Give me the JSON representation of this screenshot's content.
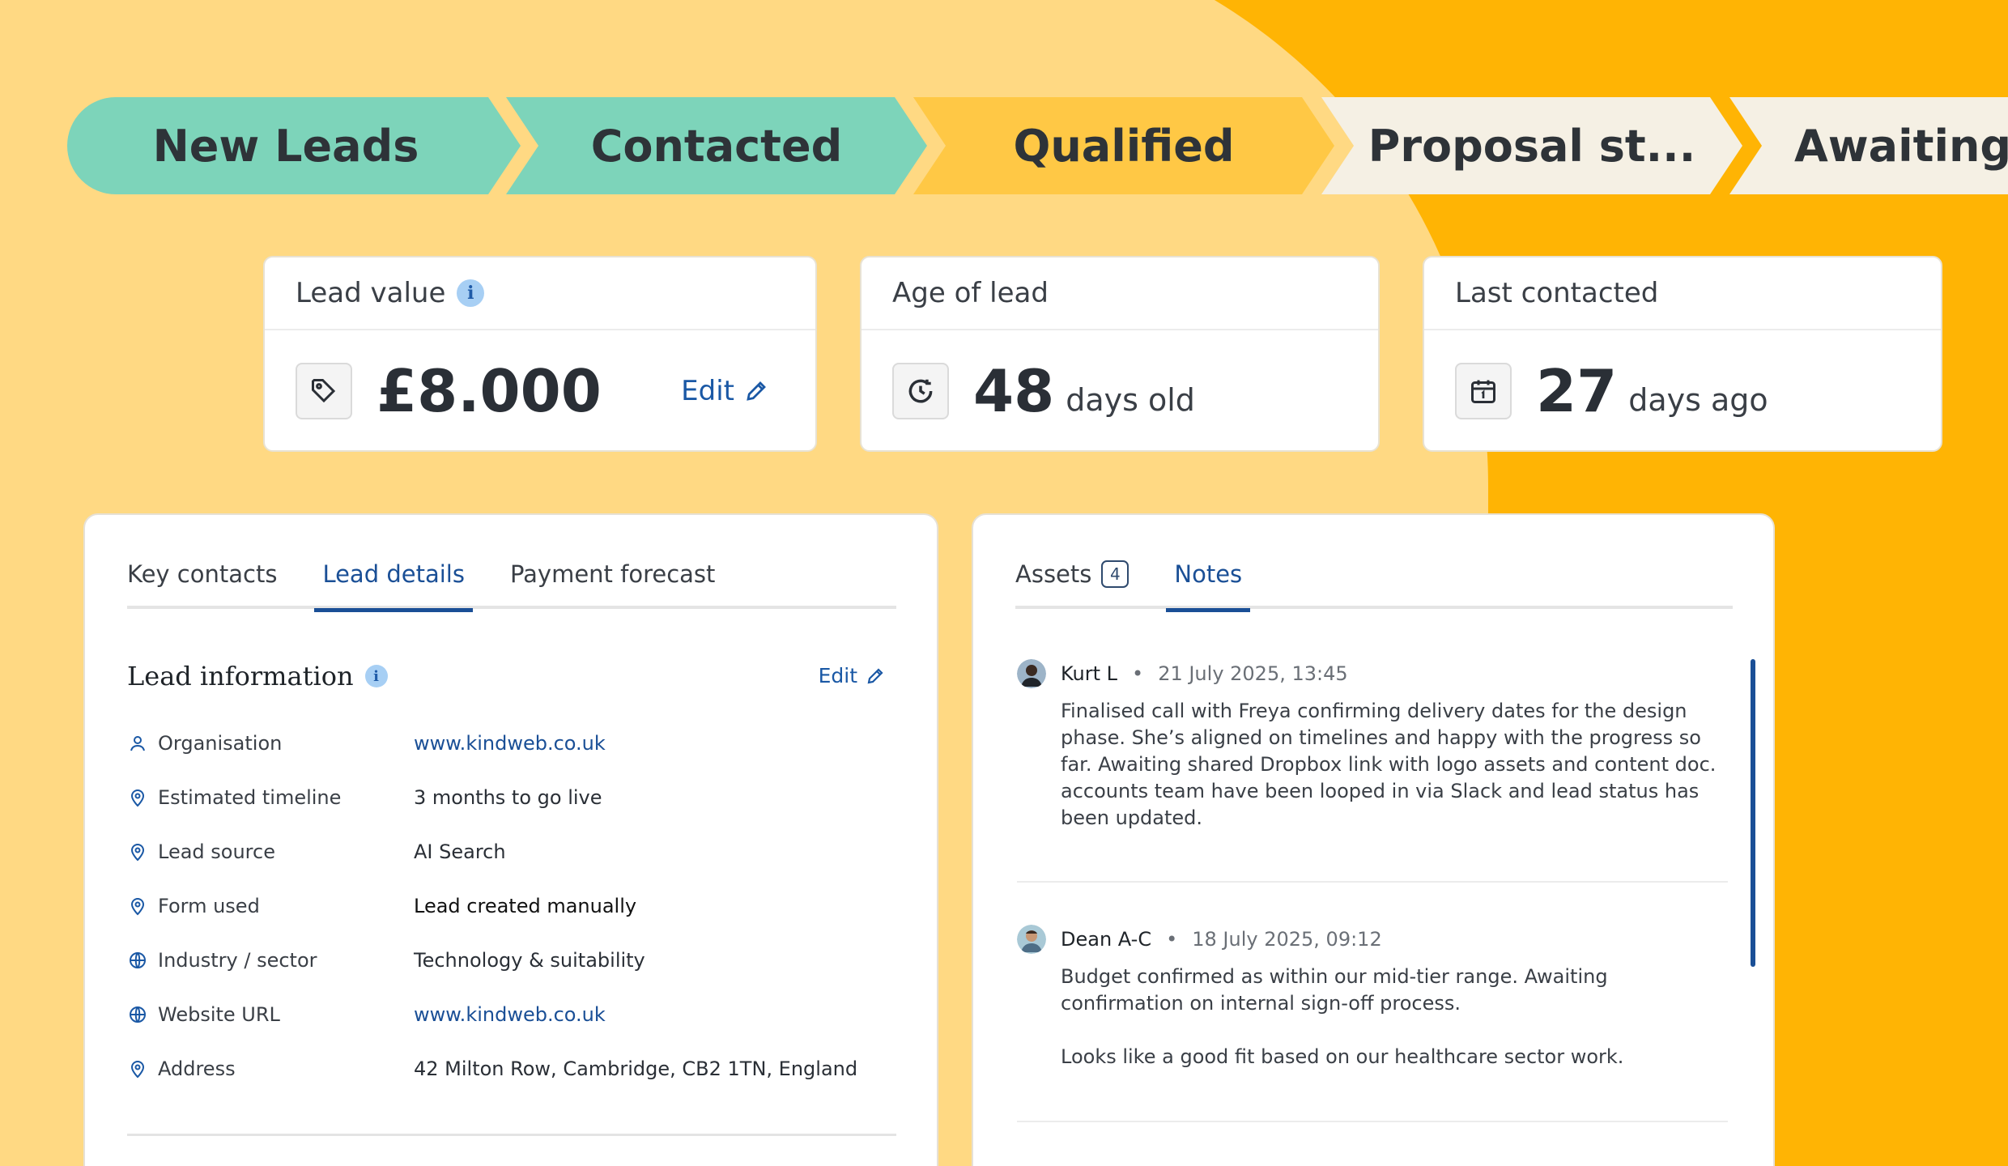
{
  "colors": {
    "accent": "#1A4F96",
    "teal": "#7DD4BA",
    "yellow": "#FFC845",
    "orange": "#FFB404",
    "cream": "#FFD983"
  },
  "pipeline": [
    "New Leads",
    "Contacted",
    "Qualified",
    "Proposal st...",
    "Awaiting c"
  ],
  "metrics": {
    "lead_value": {
      "label": "Lead value",
      "value": "£8.000",
      "edit": "Edit",
      "icon": "tag-icon"
    },
    "age": {
      "label": "Age of lead",
      "value": "48",
      "unit": "days old",
      "icon": "clock-refresh-icon"
    },
    "last": {
      "label": "Last contacted",
      "value": "27",
      "unit": "days ago",
      "icon": "calendar-icon"
    }
  },
  "left_panel": {
    "tabs": [
      "Key contacts",
      "Lead details",
      "Payment forecast"
    ],
    "active_tab": "Lead details",
    "section_title": "Lead information",
    "edit": "Edit",
    "fields": [
      {
        "label": "Organisation",
        "value": "www.kindweb.co.uk",
        "icon": "person-icon"
      },
      {
        "label": "Estimated timeline",
        "value": "3 months to go live",
        "icon": "pin-icon"
      },
      {
        "label": "Lead source",
        "value": "AI Search",
        "icon": "pin-icon"
      },
      {
        "label": "Form used",
        "value": "Lead created manually",
        "icon": "pin-icon"
      },
      {
        "label": "Industry / sector",
        "value": "Technology & suitability",
        "icon": "globe-icon"
      },
      {
        "label": "Website URL",
        "value": "www.kindweb.co.uk",
        "icon": "globe-icon"
      },
      {
        "label": "Address",
        "value": "42 Milton Row, Cambridge, CB2 1TN, England",
        "icon": "pin-icon"
      }
    ]
  },
  "right_panel": {
    "tabs": {
      "assets": "Assets",
      "assets_count": "4",
      "notes": "Notes"
    },
    "active_tab": "Notes",
    "notes": [
      {
        "author": "Kurt L",
        "time": "21 July 2025, 13:45",
        "paragraphs": [
          "Finalised call with Freya confirming delivery dates for the design phase. She’s aligned on timelines and happy with the progress so far. Awaiting shared Dropbox link with logo assets and content doc. accounts team have been looped in via Slack and lead status has been updated."
        ]
      },
      {
        "author": "Dean A-C",
        "time": "18 July 2025, 09:12",
        "paragraphs": [
          "Budget confirmed as within our mid-tier range. Awaiting confirmation on internal sign-off process.",
          "Looks like a good fit based on our healthcare sector work."
        ]
      }
    ]
  }
}
